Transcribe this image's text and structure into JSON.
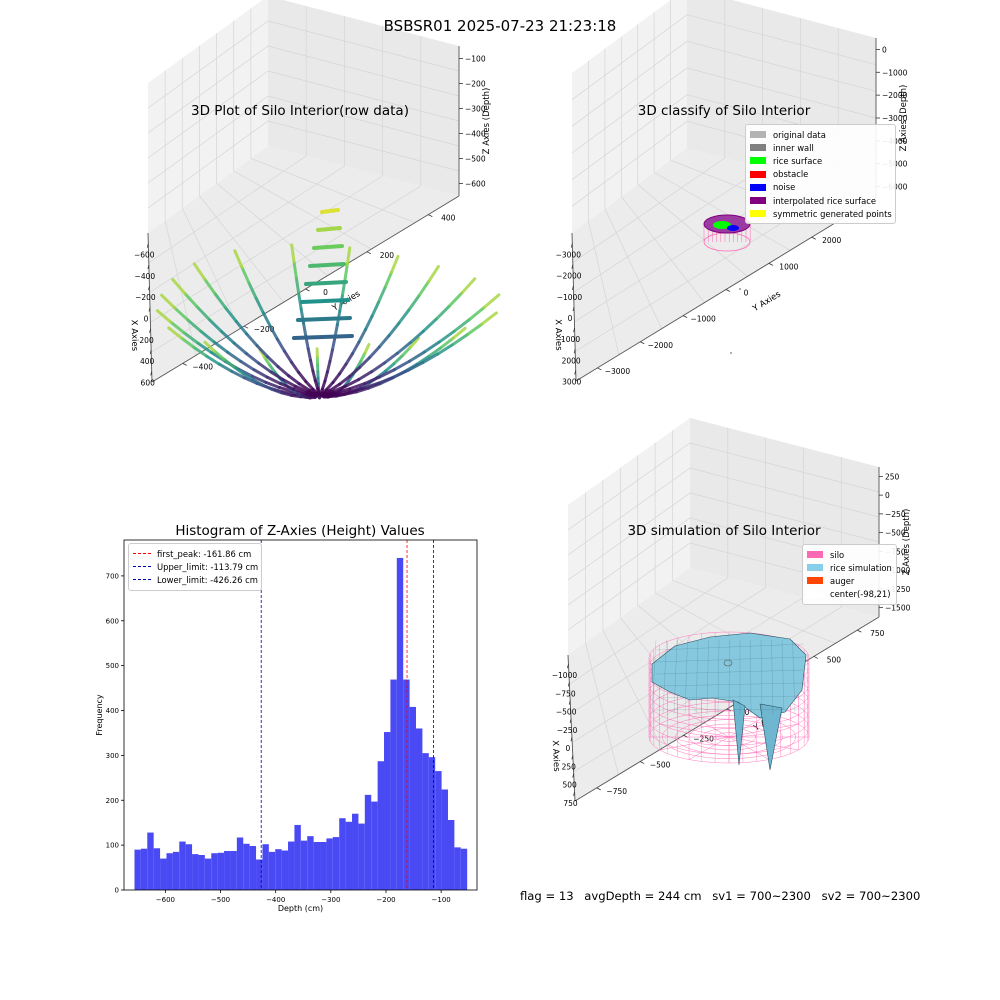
{
  "suptitle": "BSBSR01 2025-07-23 21:23:18",
  "colors": {
    "background": "#ffffff",
    "pane_fill": "#f2f2f2",
    "grid": "#d5d5d5",
    "histogram_bar": "#4a4af5",
    "first_peak_line": "#ff0000",
    "limit_line": "#0000aa",
    "silo_wire": "#ff69b4",
    "rice_fill": "#86c8de",
    "rice_edge": "#2a5060"
  },
  "status": {
    "flag": "flag = 13",
    "avg_depth": "avgDepth = 244 cm",
    "sv1": "sv1 = 700~2300",
    "sv2": "sv2 = 700~2300"
  },
  "chart_data": [
    {
      "id": "raw",
      "type": "scatter",
      "title": "3D Plot of Silo Interior(row data)",
      "xlabel": "X Axies",
      "ylabel": "Y Axies",
      "zlabel": "Z Axies (Depth)",
      "xticks": [
        "−600",
        "−400",
        "−200",
        "0",
        "200",
        "400",
        "600"
      ],
      "yticks": [
        "−400",
        "−200",
        "0",
        "200",
        "400"
      ],
      "zticks": [
        "−100",
        "−200",
        "−300",
        "−400",
        "−500",
        "−600"
      ],
      "colormap": "viridis"
    },
    {
      "id": "classify",
      "type": "scatter",
      "title": "3D classify of Silo Interior",
      "xlabel": "X Axies",
      "ylabel": "Y Axies",
      "zlabel": "Z Axies (Depth)",
      "xticks": [
        "−3000",
        "−2000",
        "−1000",
        "0",
        "1000",
        "2000",
        "3000"
      ],
      "yticks": [
        "−3000",
        "−2000",
        "−1000",
        "0",
        "1000",
        "2000",
        "3000"
      ],
      "zticks": [
        "0",
        "−1000",
        "−2000",
        "−3000",
        "−4000",
        "−5000",
        "−6000"
      ],
      "legend": [
        {
          "label": "original data",
          "color": "#b3b3b3"
        },
        {
          "label": "inner wall",
          "color": "#808080"
        },
        {
          "label": "rice surface",
          "color": "#00ff00"
        },
        {
          "label": "obstacle",
          "color": "#ff0000"
        },
        {
          "label": "noise",
          "color": "#0000ff"
        },
        {
          "label": "interpolated rice surface",
          "color": "#800080"
        },
        {
          "label": "symmetric generated points",
          "color": "#ffff00"
        }
      ]
    },
    {
      "id": "histogram",
      "type": "bar",
      "title": "Histogram of Z-Axies (Height) Values",
      "xlabel": "Depth (cm)",
      "ylabel": "Frequency",
      "xlim": [
        -675,
        -35
      ],
      "ylim": [
        0,
        780
      ],
      "xticks": [
        -600,
        -500,
        -400,
        -300,
        -200,
        -100
      ],
      "yticks": [
        0,
        100,
        200,
        300,
        400,
        500,
        600,
        700
      ],
      "bin_edges": [
        -656,
        -644.4,
        -632.8,
        -621.2,
        -609.6,
        -598,
        -586.4,
        -574.8,
        -563.2,
        -551.6,
        -540,
        -528.4,
        -516.8,
        -505.2,
        -493.6,
        -482,
        -470.4,
        -458.8,
        -447.2,
        -435.6,
        -424,
        -412.4,
        -400.8,
        -389.2,
        -377.6,
        -366,
        -354.4,
        -342.8,
        -331.2,
        -319.6,
        -308,
        -296.4,
        -284.8,
        -273.2,
        -261.6,
        -250,
        -238.4,
        -226.8,
        -215.2,
        -203.6,
        -192,
        -180.4,
        -168.8,
        -157.2,
        -145.6,
        -134,
        -122.4,
        -110.8,
        -99.2,
        -87.6,
        -76,
        -64.4,
        -52.8
      ],
      "values": [
        90,
        92,
        128,
        93,
        70,
        82,
        85,
        108,
        102,
        80,
        78,
        70,
        82,
        83,
        87,
        87,
        117,
        103,
        98,
        68,
        102,
        85,
        91,
        88,
        108,
        145,
        110,
        120,
        107,
        107,
        115,
        118,
        160,
        152,
        170,
        148,
        212,
        197,
        287,
        352,
        469,
        740,
        469,
        408,
        360,
        305,
        296,
        265,
        224,
        156,
        95,
        92
      ],
      "lines": [
        {
          "label": "first_peak: -161.86 cm",
          "x": -161.86,
          "color": "#ff0000"
        },
        {
          "label": "Upper_limit: -113.79 cm",
          "x": -113.79,
          "color": "#0000aa"
        },
        {
          "label": "Lower_limit: -426.26 cm",
          "x": -426.26,
          "color": "#0000aa"
        }
      ]
    },
    {
      "id": "simulation",
      "type": "area",
      "title": "3D simulation of Silo Interior",
      "xlabel": "X Axies",
      "ylabel": "Y Axies",
      "zlabel": "Z Axies (Depth)",
      "xticks": [
        "−1000",
        "−750",
        "−500",
        "−250",
        "0",
        "250",
        "500",
        "750"
      ],
      "yticks": [
        "−750",
        "−500",
        "−250",
        "0",
        "250",
        "500",
        "750"
      ],
      "zticks": [
        "250",
        "0",
        "−250",
        "−500",
        "−750",
        "−1000",
        "−1250",
        "−1500"
      ],
      "legend": [
        {
          "label": "silo",
          "color": "#ff69b4"
        },
        {
          "label": "rice simulation",
          "color": "#87ceeb"
        },
        {
          "label": "auger",
          "color": "#ff4500"
        },
        {
          "label": "center(-98,21)",
          "color": "#ffffff"
        }
      ]
    }
  ]
}
